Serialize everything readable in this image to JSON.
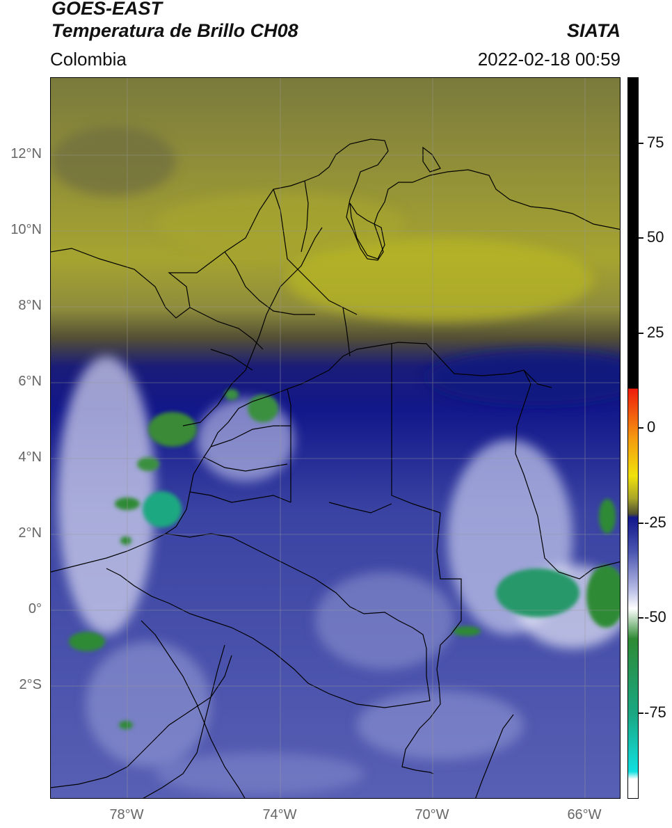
{
  "header": {
    "title_line1": "GOES-EAST",
    "title_line2": "Temperatura de Brillo CH08",
    "region": "Colombia",
    "brand": "SIATA",
    "timestamp": "2022-02-18 00:59"
  },
  "map": {
    "lat_labels": [
      "12°N",
      "10°N",
      "8°N",
      "6°N",
      "4°N",
      "2°N",
      "0°",
      "2°S"
    ],
    "lon_labels": [
      "78°W",
      "74°W",
      "70°W",
      "66°W"
    ],
    "lon_range": [
      -80,
      -65
    ],
    "lat_range": [
      -4.5,
      14.5
    ]
  },
  "colorbar": {
    "tick_labels": [
      "75",
      "50",
      "25",
      "0",
      "-25",
      "-50",
      "-75"
    ],
    "range": [
      -100,
      90
    ],
    "colors": {
      "black": "#000000",
      "red": "#ee1c0c",
      "orange": "#f59a10",
      "yellow": "#f0e20a",
      "olive": "#a8a428",
      "dark_olive": "#505030",
      "navy": "#12178a",
      "blue": "#4a55b0",
      "lavender": "#b8bde6",
      "white": "#ffffff",
      "green": "#2e8a34",
      "teal": "#1aa884",
      "cyan": "#10e0e0"
    }
  }
}
